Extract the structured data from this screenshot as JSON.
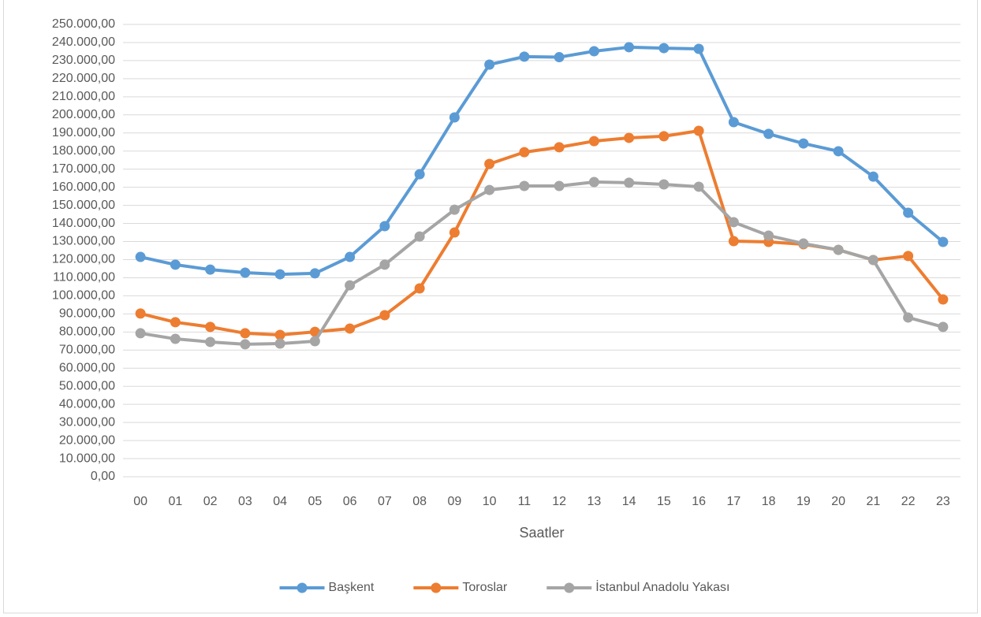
{
  "chart_data": {
    "type": "line",
    "x_label": "Saatler",
    "categories": [
      "00",
      "01",
      "02",
      "03",
      "04",
      "05",
      "06",
      "07",
      "08",
      "09",
      "10",
      "11",
      "12",
      "13",
      "14",
      "15",
      "16",
      "17",
      "18",
      "19",
      "20",
      "21",
      "22",
      "23"
    ],
    "series": [
      {
        "name": "Başkent",
        "color": "#5b9bd5",
        "values": [
          121500,
          117200,
          114500,
          112800,
          111900,
          112400,
          121500,
          138500,
          167200,
          198600,
          227800,
          232200,
          231900,
          235200,
          237400,
          236900,
          236500,
          196000,
          189500,
          184200,
          179900,
          165900,
          145900,
          129800
        ]
      },
      {
        "name": "Toroslar",
        "color": "#ed7d31",
        "values": [
          90200,
          85400,
          82800,
          79300,
          78400,
          80100,
          81900,
          89300,
          104100,
          135000,
          172900,
          179400,
          182100,
          185500,
          187300,
          188200,
          191200,
          130200,
          129800,
          128500,
          125400,
          119800,
          122000,
          98000
        ]
      },
      {
        "name": "İstanbul Anadolu Yakası",
        "color": "#a5a5a5",
        "values": [
          79300,
          76200,
          74500,
          73200,
          73600,
          74900,
          105800,
          117200,
          132800,
          147600,
          158500,
          160700,
          160700,
          162900,
          162500,
          161600,
          160300,
          140700,
          133300,
          128900,
          125400,
          119800,
          88000,
          82800
        ]
      }
    ],
    "ylim": [
      0,
      250000
    ],
    "yticks": [
      {
        "value": 0,
        "label": "0,00"
      },
      {
        "value": 10000,
        "label": "10.000,00"
      },
      {
        "value": 20000,
        "label": "20.000,00"
      },
      {
        "value": 30000,
        "label": "30.000,00"
      },
      {
        "value": 40000,
        "label": "40.000,00"
      },
      {
        "value": 50000,
        "label": "50.000,00"
      },
      {
        "value": 60000,
        "label": "60.000,00"
      },
      {
        "value": 70000,
        "label": "70.000,00"
      },
      {
        "value": 80000,
        "label": "80.000,00"
      },
      {
        "value": 90000,
        "label": "90.000,00"
      },
      {
        "value": 100000,
        "label": "100.000,00"
      },
      {
        "value": 110000,
        "label": "110.000,00"
      },
      {
        "value": 120000,
        "label": "120.000,00"
      },
      {
        "value": 130000,
        "label": "130.000,00"
      },
      {
        "value": 140000,
        "label": "140.000,00"
      },
      {
        "value": 150000,
        "label": "150.000,00"
      },
      {
        "value": 160000,
        "label": "160.000,00"
      },
      {
        "value": 170000,
        "label": "170.000,00"
      },
      {
        "value": 180000,
        "label": "180.000,00"
      },
      {
        "value": 190000,
        "label": "190.000,00"
      },
      {
        "value": 200000,
        "label": "200.000,00"
      },
      {
        "value": 210000,
        "label": "210.000,00"
      },
      {
        "value": 220000,
        "label": "220.000,00"
      },
      {
        "value": 230000,
        "label": "230.000,00"
      },
      {
        "value": 240000,
        "label": "240.000,00"
      },
      {
        "value": 250000,
        "label": "250.000,00"
      }
    ],
    "grid": true,
    "legend": "bottom"
  }
}
